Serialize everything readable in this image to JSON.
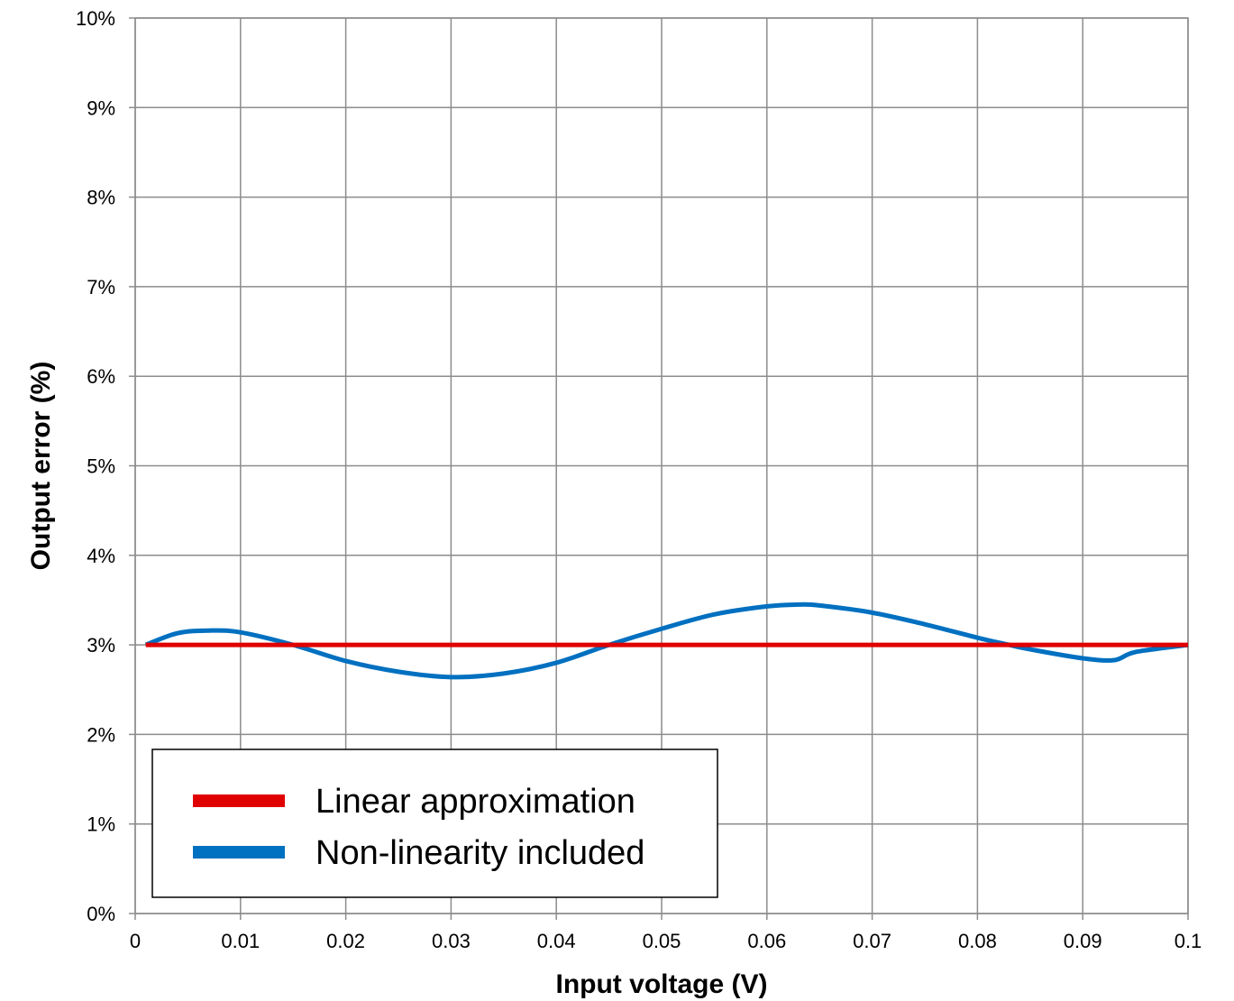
{
  "chart_data": {
    "type": "line",
    "title": "",
    "xlabel": "Input voltage (V)",
    "ylabel": "Output error (%)",
    "xlim": [
      0,
      0.1
    ],
    "ylim": [
      0,
      10
    ],
    "x_ticks": [
      "0",
      "0.01",
      "0.02",
      "0.03",
      "0.04",
      "0.05",
      "0.06",
      "0.07",
      "0.08",
      "0.09",
      "0.1"
    ],
    "y_ticks": [
      "0%",
      "1%",
      "2%",
      "3%",
      "4%",
      "5%",
      "6%",
      "7%",
      "8%",
      "9%",
      "10%"
    ],
    "grid": true,
    "legend_position": "bottom-left",
    "series": [
      {
        "name": "Linear approximation",
        "color": "#e00000",
        "x": [
          0.001,
          0.1
        ],
        "y": [
          3.0,
          3.0
        ]
      },
      {
        "name": "Non-linearity included",
        "color": "#0070c0",
        "x": [
          0.001,
          0.004,
          0.007,
          0.01,
          0.015,
          0.02,
          0.025,
          0.03,
          0.035,
          0.04,
          0.045,
          0.05,
          0.055,
          0.06,
          0.063,
          0.065,
          0.07,
          0.075,
          0.08,
          0.083,
          0.085,
          0.09,
          0.093,
          0.095,
          0.1
        ],
        "y": [
          3.0,
          3.13,
          3.16,
          3.14,
          3.0,
          2.82,
          2.7,
          2.64,
          2.68,
          2.8,
          3.0,
          3.18,
          3.34,
          3.43,
          3.45,
          3.44,
          3.36,
          3.23,
          3.08,
          3.0,
          2.95,
          2.85,
          2.83,
          2.92,
          3.0
        ]
      }
    ]
  }
}
